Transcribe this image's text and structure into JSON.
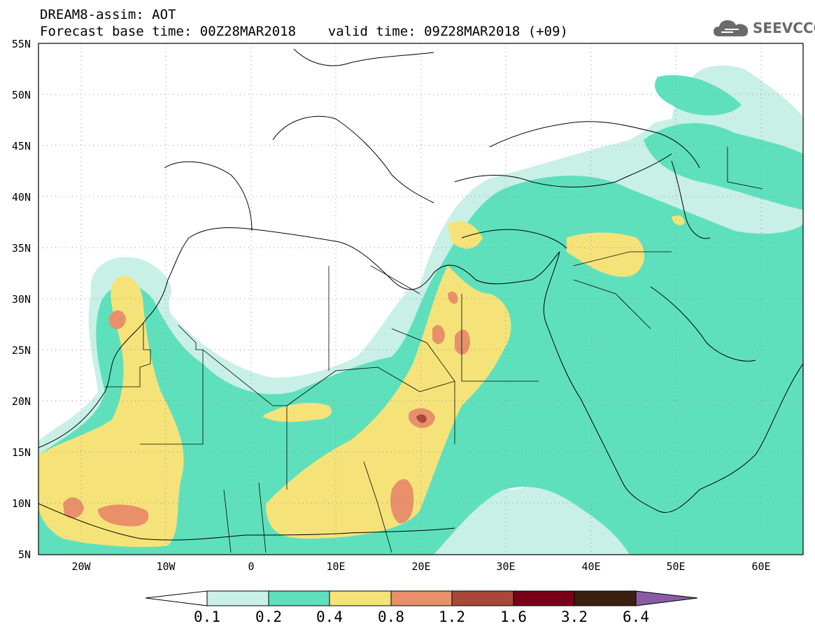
{
  "header": {
    "line1": "DREAM8-assim: AOT",
    "line2": "Forecast base time: 00Z28MAR2018    valid time: 09Z28MAR2018 (+09)"
  },
  "logo": {
    "text": "SEEVCCC",
    "icon": "cloud-icon"
  },
  "map": {
    "projection": "lat-lon",
    "lon_range": [
      -25,
      65
    ],
    "lat_range": [
      5,
      55
    ],
    "grid": "dotted",
    "lat_labels": [
      "55N",
      "50N",
      "45N",
      "40N",
      "35N",
      "30N",
      "25N",
      "20N",
      "15N",
      "10N",
      "5N"
    ],
    "lon_labels": [
      "20W",
      "10W",
      "0",
      "10E",
      "20E",
      "30E",
      "40E",
      "50E",
      "60E"
    ]
  },
  "colorbar": {
    "levels": [
      "0.1",
      "0.2",
      "0.4",
      "0.8",
      "1.2",
      "1.6",
      "3.2",
      "6.4"
    ],
    "colors": [
      "#ffffff",
      "#c8f0e6",
      "#5fe0bc",
      "#f5e37a",
      "#e8906a",
      "#a84838",
      "#780018",
      "#3a2010",
      "#8a5ca8"
    ]
  }
}
